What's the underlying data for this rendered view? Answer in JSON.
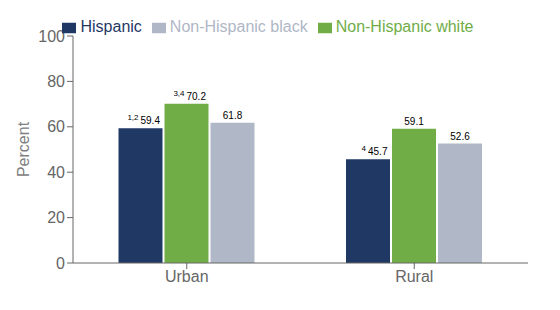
{
  "chart_data": {
    "type": "bar",
    "categories": [
      "Urban",
      "Rural"
    ],
    "series": [
      {
        "name": "Hispanic",
        "color": "#1f3864",
        "values": [
          59.4,
          45.7
        ],
        "superscripts": [
          "1,2",
          "4"
        ]
      },
      {
        "name": "Non-Hispanic white",
        "color": "#70ad47",
        "values": [
          70.2,
          59.1
        ],
        "superscripts": [
          "3,4",
          null
        ]
      },
      {
        "name": "Non-Hispanic black",
        "color": "#b0b7c6",
        "values": [
          61.8,
          52.6
        ],
        "superscripts": [
          null,
          null
        ]
      }
    ],
    "ylabel": "Percent",
    "ylim": [
      0,
      100
    ],
    "yticks": [
      0,
      20,
      40,
      60,
      80,
      100
    ],
    "grid": false,
    "legend": "top",
    "data_labels": true
  }
}
